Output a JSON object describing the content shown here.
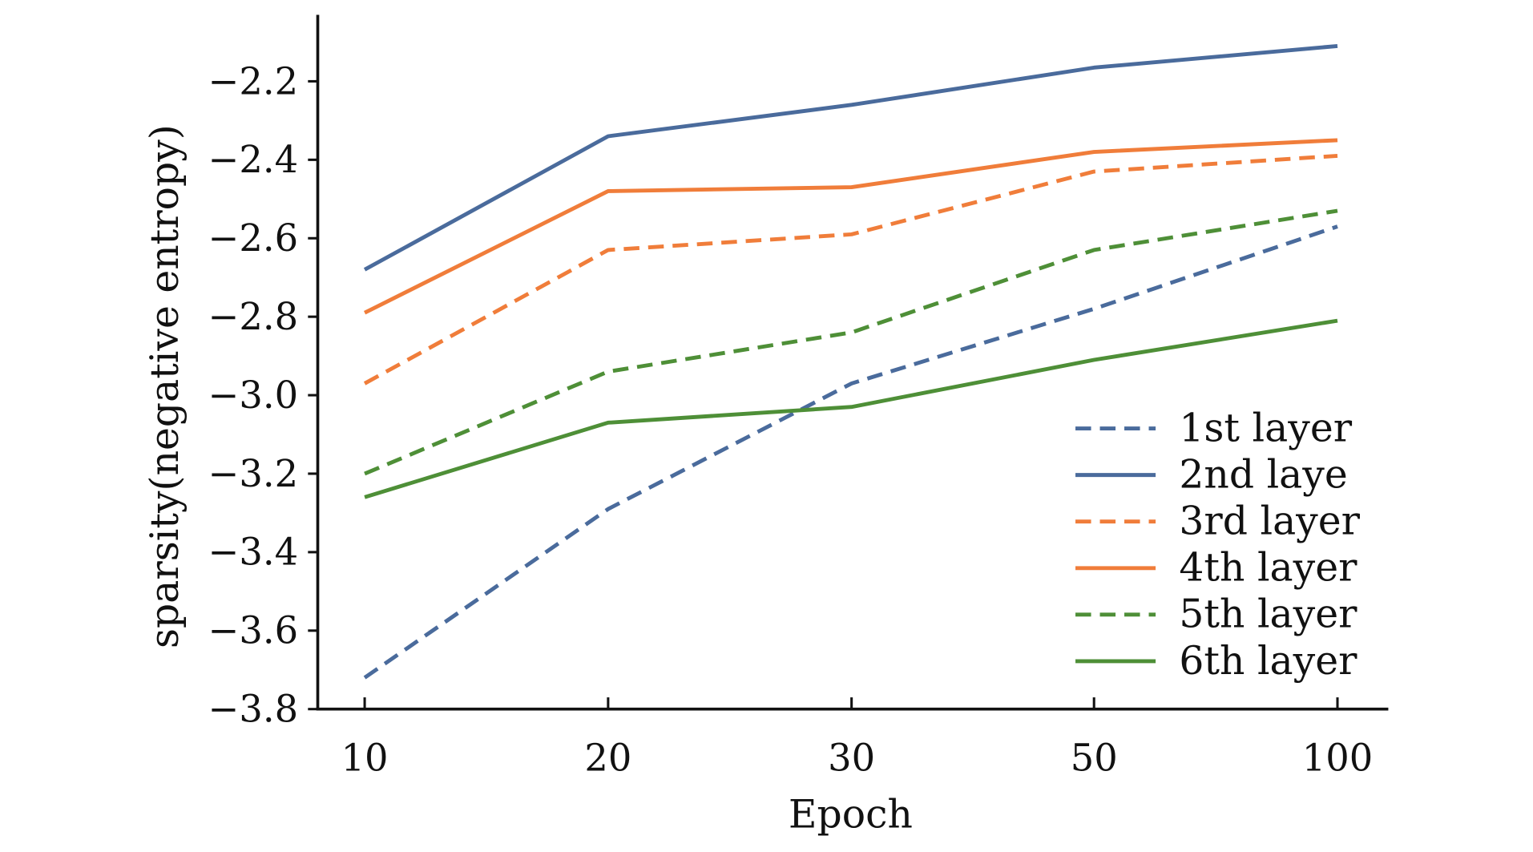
{
  "chart_data": {
    "type": "line",
    "title": "",
    "xlabel": "Epoch",
    "ylabel": "sparsity(negative entropy)",
    "categories": [
      "10",
      "20",
      "30",
      "50",
      "100"
    ],
    "ylim": [
      -3.8,
      -2.05
    ],
    "yticks": [
      -3.8,
      -3.6,
      -3.4,
      -3.2,
      -3.0,
      -2.8,
      -2.6,
      -2.4,
      -2.2
    ],
    "ytick_labels": [
      "−3.8",
      "−3.6",
      "−3.4",
      "−3.2",
      "−3.0",
      "−2.8",
      "−2.6",
      "−2.4",
      "−2.2"
    ],
    "grid": false,
    "legend_position": "bottom-right",
    "series": [
      {
        "name": "1st layer",
        "color": "#4a6b9c",
        "dashed": true,
        "values": [
          -3.72,
          -3.29,
          -2.97,
          -2.78,
          -2.57
        ]
      },
      {
        "name": "2nd laye",
        "color": "#4a6b9c",
        "dashed": false,
        "values": [
          -2.68,
          -2.34,
          -2.26,
          -2.165,
          -2.11
        ]
      },
      {
        "name": "3rd layer",
        "color": "#f07d3a",
        "dashed": true,
        "values": [
          -2.97,
          -2.63,
          -2.59,
          -2.43,
          -2.39
        ]
      },
      {
        "name": "4th layer",
        "color": "#f07d3a",
        "dashed": false,
        "values": [
          -2.79,
          -2.48,
          -2.47,
          -2.38,
          -2.35
        ]
      },
      {
        "name": "5th layer",
        "color": "#4e8f37",
        "dashed": true,
        "values": [
          -3.2,
          -2.94,
          -2.84,
          -2.63,
          -2.53
        ]
      },
      {
        "name": "6th layer",
        "color": "#4e8f37",
        "dashed": false,
        "values": [
          -3.26,
          -3.07,
          -3.03,
          -2.91,
          -2.81
        ]
      }
    ]
  }
}
